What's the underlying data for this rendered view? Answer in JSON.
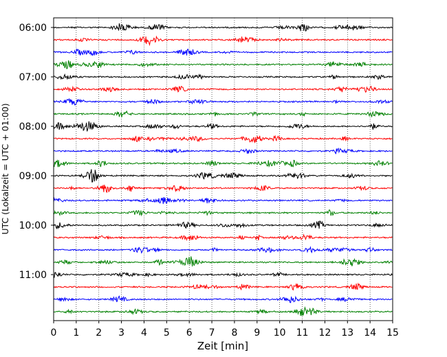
{
  "chart_data": {
    "type": "line",
    "chart_kind": "seismic helicorder / waveform drum plot",
    "xlabel": "Zeit  [min]",
    "ylabel": "UTC (Lokalzeit = UTC + 01:00)",
    "xlim": [
      0,
      15
    ],
    "x_ticks": [
      0,
      1,
      2,
      3,
      4,
      5,
      6,
      7,
      8,
      9,
      10,
      11,
      12,
      13,
      14,
      15
    ],
    "x_tick_labels": [
      "0",
      "1",
      "2",
      "3",
      "4",
      "5",
      "6",
      "7",
      "8",
      "9",
      "10",
      "11",
      "12",
      "13",
      "14",
      "15"
    ],
    "x_grid": "dotted vertical lines at each minute",
    "y_tick_labels": [
      "06:00",
      "07:00",
      "08:00",
      "09:00",
      "10:00",
      "11:00"
    ],
    "trace_interval_minutes": 15,
    "trace_start_times": [
      "06:00",
      "06:15",
      "06:30",
      "06:45",
      "07:00",
      "07:15",
      "07:30",
      "07:45",
      "08:00",
      "08:15",
      "08:30",
      "08:45",
      "09:00",
      "09:15",
      "09:30",
      "09:45",
      "10:00",
      "10:15",
      "10:30",
      "10:45",
      "11:00",
      "11:15",
      "11:30",
      "11:45"
    ],
    "color_cycle": [
      "#000000",
      "#ff0000",
      "#0000ff",
      "#008000"
    ],
    "legend": "none"
  }
}
